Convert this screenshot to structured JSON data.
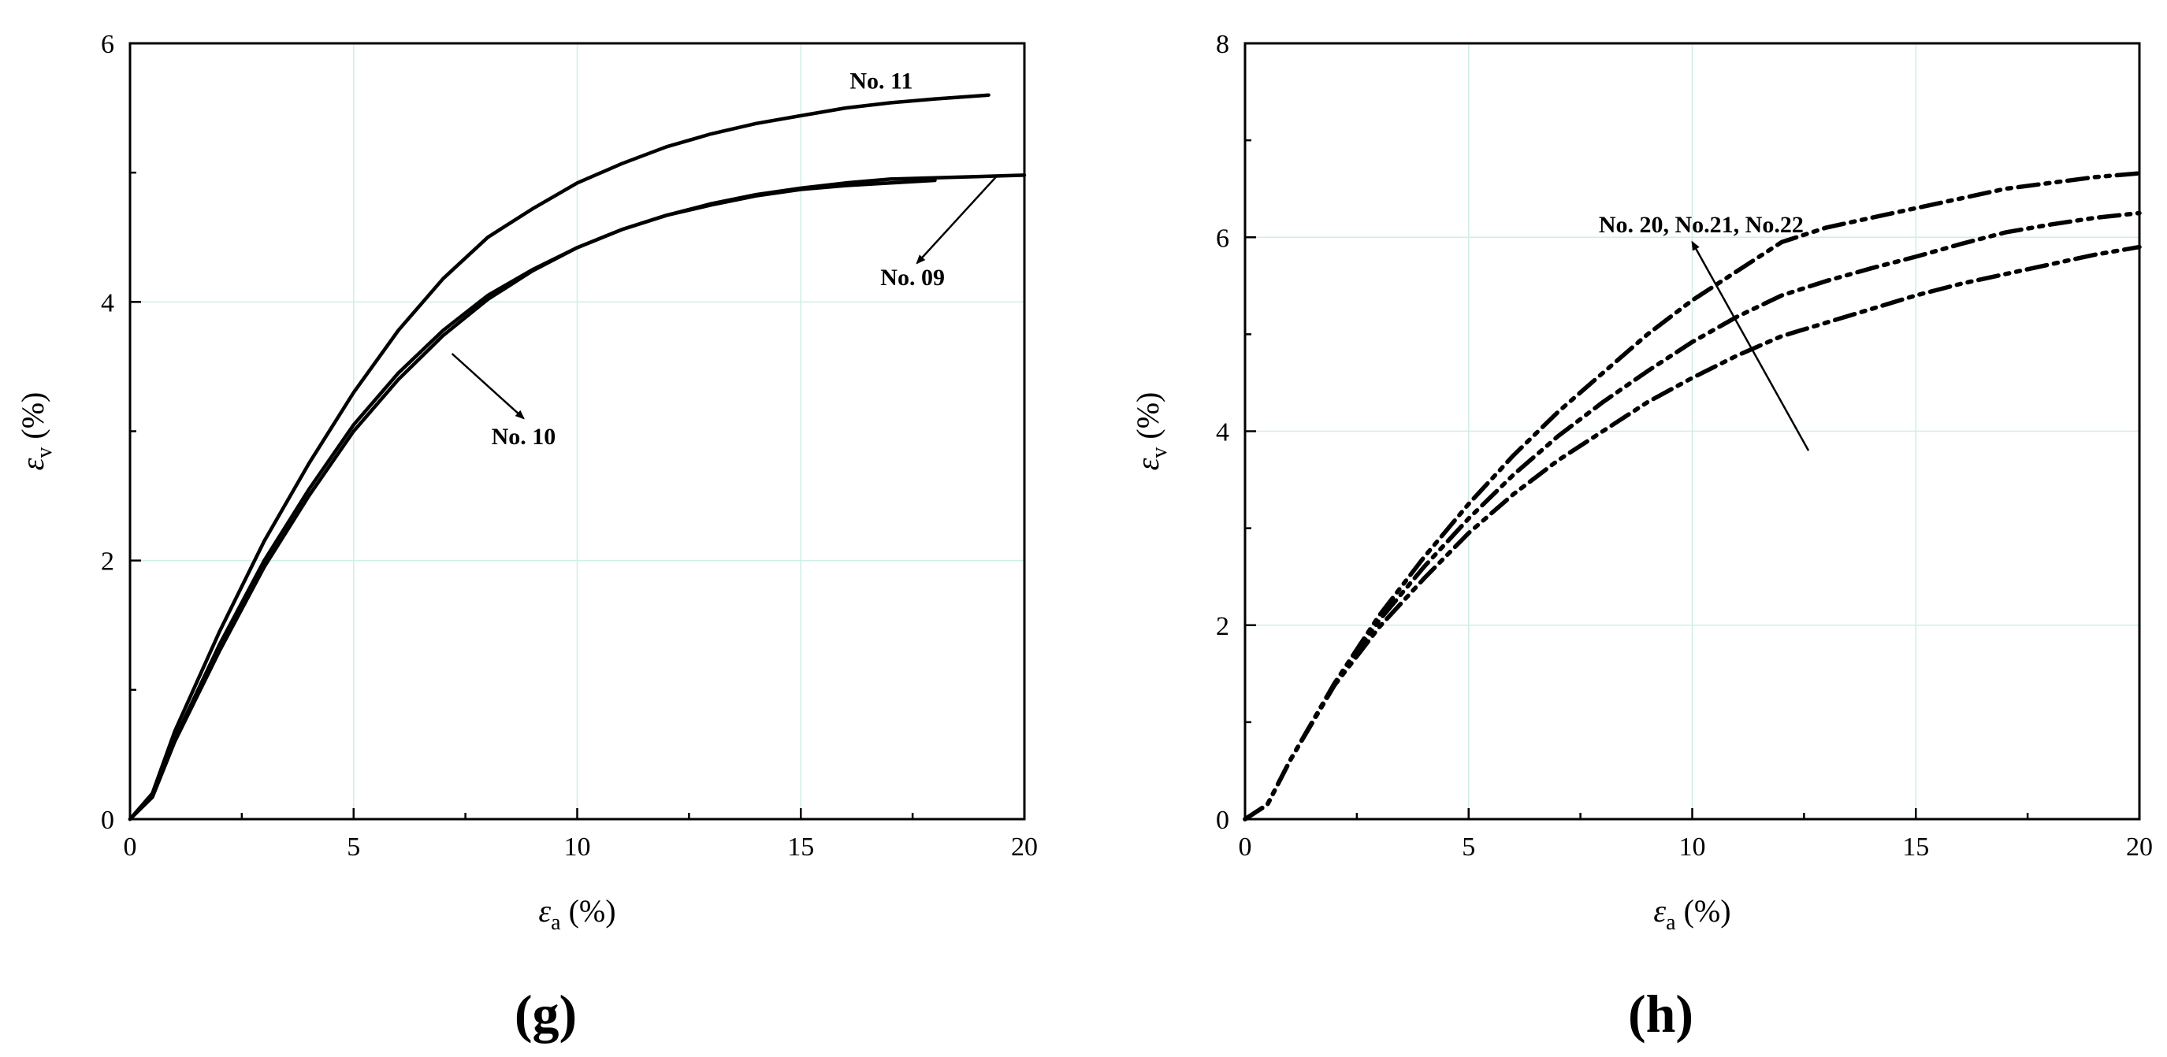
{
  "chart_data": [
    {
      "type": "line",
      "panel_label": "(g)",
      "xlabel": {
        "symbol": "ε",
        "sub": "a",
        "unit": " (%)"
      },
      "ylabel": {
        "symbol": "ε",
        "sub": "v",
        "unit": " (%)"
      },
      "xlim": [
        0,
        20
      ],
      "ylim": [
        0,
        6
      ],
      "xticks": [
        0,
        5,
        10,
        15,
        20
      ],
      "yticks": [
        0,
        2,
        4,
        6
      ],
      "xtick_labels": [
        "0",
        "5",
        "10",
        "15",
        "20"
      ],
      "ytick_labels": [
        "0",
        "2",
        "4",
        "6"
      ],
      "grid": true,
      "series": [
        {
          "name": "No. 11",
          "style": "solid",
          "x": [
            0,
            0.5,
            1,
            2,
            3,
            4,
            5,
            6,
            7,
            8,
            9,
            10,
            11,
            12,
            13,
            14,
            15,
            16,
            17,
            18,
            19.2
          ],
          "y": [
            0,
            0.2,
            0.68,
            1.45,
            2.15,
            2.75,
            3.3,
            3.78,
            4.18,
            4.5,
            4.72,
            4.92,
            5.07,
            5.2,
            5.3,
            5.38,
            5.44,
            5.5,
            5.54,
            5.57,
            5.6
          ]
        },
        {
          "name": "No. 10",
          "style": "solid",
          "x": [
            0,
            0.5,
            1,
            2,
            3,
            4,
            5,
            6,
            7,
            8,
            9,
            10,
            11,
            12,
            13,
            14,
            15,
            16,
            17,
            18
          ],
          "y": [
            0,
            0.18,
            0.62,
            1.35,
            2.0,
            2.55,
            3.05,
            3.45,
            3.78,
            4.05,
            4.25,
            4.42,
            4.56,
            4.67,
            4.75,
            4.82,
            4.87,
            4.9,
            4.92,
            4.94
          ]
        },
        {
          "name": "No. 09",
          "style": "solid",
          "x": [
            0,
            0.5,
            1,
            2,
            3,
            4,
            5,
            6,
            7,
            8,
            9,
            10,
            11,
            12,
            13,
            14,
            15,
            16,
            17,
            18,
            19,
            20
          ],
          "y": [
            0,
            0.17,
            0.6,
            1.3,
            1.95,
            2.5,
            3.0,
            3.4,
            3.74,
            4.02,
            4.24,
            4.42,
            4.56,
            4.67,
            4.76,
            4.83,
            4.88,
            4.92,
            4.95,
            4.96,
            4.97,
            4.98
          ]
        }
      ],
      "annotations": [
        {
          "text": "No. 11",
          "x": 16.8,
          "y": 5.65
        },
        {
          "text": "No. 09",
          "x": 17.5,
          "y": 4.13,
          "arrow_from": [
            19.4,
            4.98
          ],
          "arrow_to": [
            17.6,
            4.3
          ]
        },
        {
          "text": "No. 10",
          "x": 8.8,
          "y": 2.9,
          "arrow_from": [
            7.2,
            3.6
          ],
          "arrow_to": [
            8.8,
            3.1
          ]
        }
      ]
    },
    {
      "type": "line",
      "panel_label": "(h)",
      "xlabel": {
        "symbol": "ε",
        "sub": "a",
        "unit": " (%)"
      },
      "ylabel": {
        "symbol": "ε",
        "sub": "v",
        "unit": " (%)"
      },
      "xlim": [
        0,
        20
      ],
      "ylim": [
        0,
        8
      ],
      "xticks": [
        0,
        5,
        10,
        15,
        20
      ],
      "yticks": [
        0,
        2,
        4,
        6,
        8
      ],
      "xtick_labels": [
        "0",
        "5",
        "10",
        "15",
        "20"
      ],
      "ytick_labels": [
        "0",
        "2",
        "4",
        "6",
        "8"
      ],
      "grid": true,
      "series": [
        {
          "name": "No. 22",
          "style": "dash-dot-dot",
          "x": [
            0,
            0.5,
            1,
            2,
            3,
            4,
            5,
            6,
            7,
            8,
            9,
            10,
            11,
            12,
            13,
            14,
            15,
            16,
            17,
            18,
            19,
            20
          ],
          "y": [
            0,
            0.15,
            0.6,
            1.4,
            2.1,
            2.7,
            3.25,
            3.75,
            4.2,
            4.6,
            5.0,
            5.35,
            5.65,
            5.95,
            6.1,
            6.2,
            6.3,
            6.4,
            6.5,
            6.56,
            6.62,
            6.66
          ]
        },
        {
          "name": "No.21",
          "style": "dash-dot-dot",
          "x": [
            0,
            0.5,
            1,
            2,
            3,
            4,
            5,
            6,
            7,
            8,
            9,
            10,
            11,
            12,
            13,
            14,
            15,
            16,
            17,
            18,
            19,
            20
          ],
          "y": [
            0,
            0.15,
            0.6,
            1.4,
            2.05,
            2.6,
            3.1,
            3.55,
            3.95,
            4.3,
            4.62,
            4.92,
            5.18,
            5.4,
            5.55,
            5.68,
            5.8,
            5.93,
            6.05,
            6.13,
            6.2,
            6.25
          ]
        },
        {
          "name": "No. 20",
          "style": "dash-dot-dot",
          "x": [
            0,
            0.5,
            1,
            2,
            3,
            4,
            5,
            6,
            7,
            8,
            9,
            10,
            11,
            12,
            13,
            14,
            15,
            16,
            17,
            18,
            19,
            20
          ],
          "y": [
            0,
            0.15,
            0.6,
            1.38,
            1.98,
            2.48,
            2.95,
            3.35,
            3.7,
            4.0,
            4.3,
            4.55,
            4.78,
            4.98,
            5.12,
            5.26,
            5.4,
            5.52,
            5.62,
            5.72,
            5.82,
            5.9
          ]
        }
      ],
      "annotations": [
        {
          "text": "No. 20, No.21, No.22",
          "x": 10.2,
          "y": 6.05,
          "arrow_from": [
            12.6,
            3.8
          ],
          "arrow_to": [
            10.0,
            5.95
          ]
        }
      ]
    }
  ]
}
